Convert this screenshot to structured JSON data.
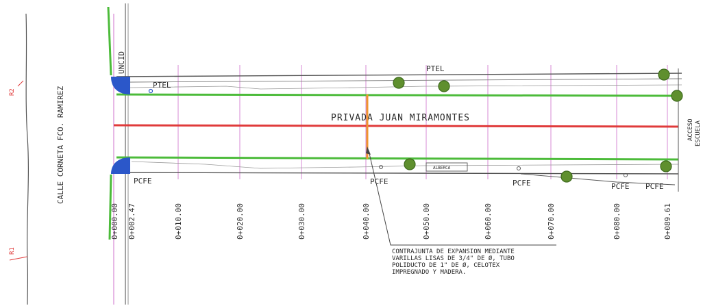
{
  "street_left": "CALLE CORNETA FCO. RAMIREZ",
  "street_main": "PRIVADA JUAN MIRAMONTES",
  "access_line1": "ACCESO",
  "access_line2": "ESCUELA",
  "junction_label": "UNCID",
  "markers": [
    "R2",
    "R1"
  ],
  "utility_labels": {
    "ptel_top": "PTEL",
    "ptel_left": "PTEL",
    "pcfe": [
      "PCFE",
      "PCFE",
      "PCFE",
      "PCFE",
      "PCFE"
    ],
    "alberca": "ALBERCA"
  },
  "stations": [
    "0+000.00",
    "0+002.47",
    "0+010.00",
    "0+020.00",
    "0+030.00",
    "0+040.00",
    "0+050.00",
    "0+060.00",
    "0+070.00",
    "0+080.00",
    "0+089.61"
  ],
  "note_lines": [
    "CONTRAJUNTA DE EXPANSION MEDIANTE",
    "VARILLAS LISAS DE 3/4\" DE Ø, TUBO",
    "POLIDUCTO DE 1\" DE Ø, CELOTEX",
    "IMPREGNADO Y MADERA."
  ],
  "colors": {
    "centerline": "#e03b3b",
    "curb": "#4cbb3a",
    "station_grid": "#d78ad6",
    "corner_fill": "#2b57c9",
    "tree": "#5f8f2e",
    "joint": "#f0952e",
    "linework": "#555555"
  }
}
